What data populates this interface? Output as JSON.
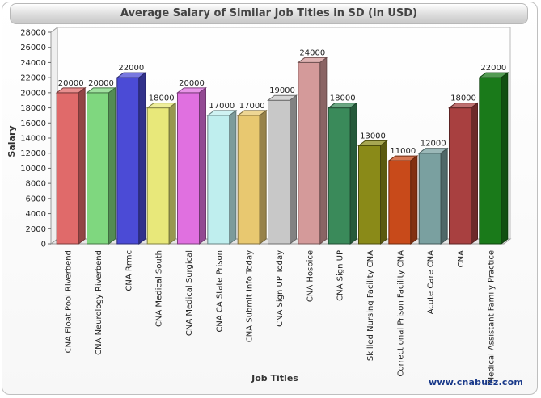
{
  "chart_data": {
    "type": "bar",
    "title": "Average Salary of Similar Job Titles in SD (in USD)",
    "xlabel": "Job Titles",
    "ylabel": "Salary",
    "ylim": [
      0,
      28000
    ],
    "ytick_step": 2000,
    "grid": false,
    "categories": [
      "CNA Float Pool Riverbend",
      "CNA Neurology Riverbend",
      "CNA Rrmc",
      "CNA Medical South",
      "CNA Medical Surgical",
      "CNA CA State Prison",
      "CNA Submit Info Today",
      "CNA Sign UP Today",
      "CNA Hospice",
      "CNA Sign UP",
      "Skilled Nursing Facility CNA",
      "Correctional Prison Facility CNA",
      "Acute Care CNA",
      "CNA",
      "Medical Assistant Family Practice"
    ],
    "values": [
      20000,
      20000,
      22000,
      18000,
      20000,
      17000,
      17000,
      19000,
      24000,
      18000,
      13000,
      11000,
      12000,
      18000,
      22000
    ],
    "colors": [
      "#e06a6a",
      "#7fd77f",
      "#4b4bd6",
      "#e8e87a",
      "#e070e0",
      "#bfeeee",
      "#e8c870",
      "#c8c8c8",
      "#d49a9a",
      "#3a8a5a",
      "#8a8a18",
      "#c84a1a",
      "#7aa0a0",
      "#a84040",
      "#1a7a1a"
    ]
  },
  "watermark": "www.cnabuzz.com"
}
